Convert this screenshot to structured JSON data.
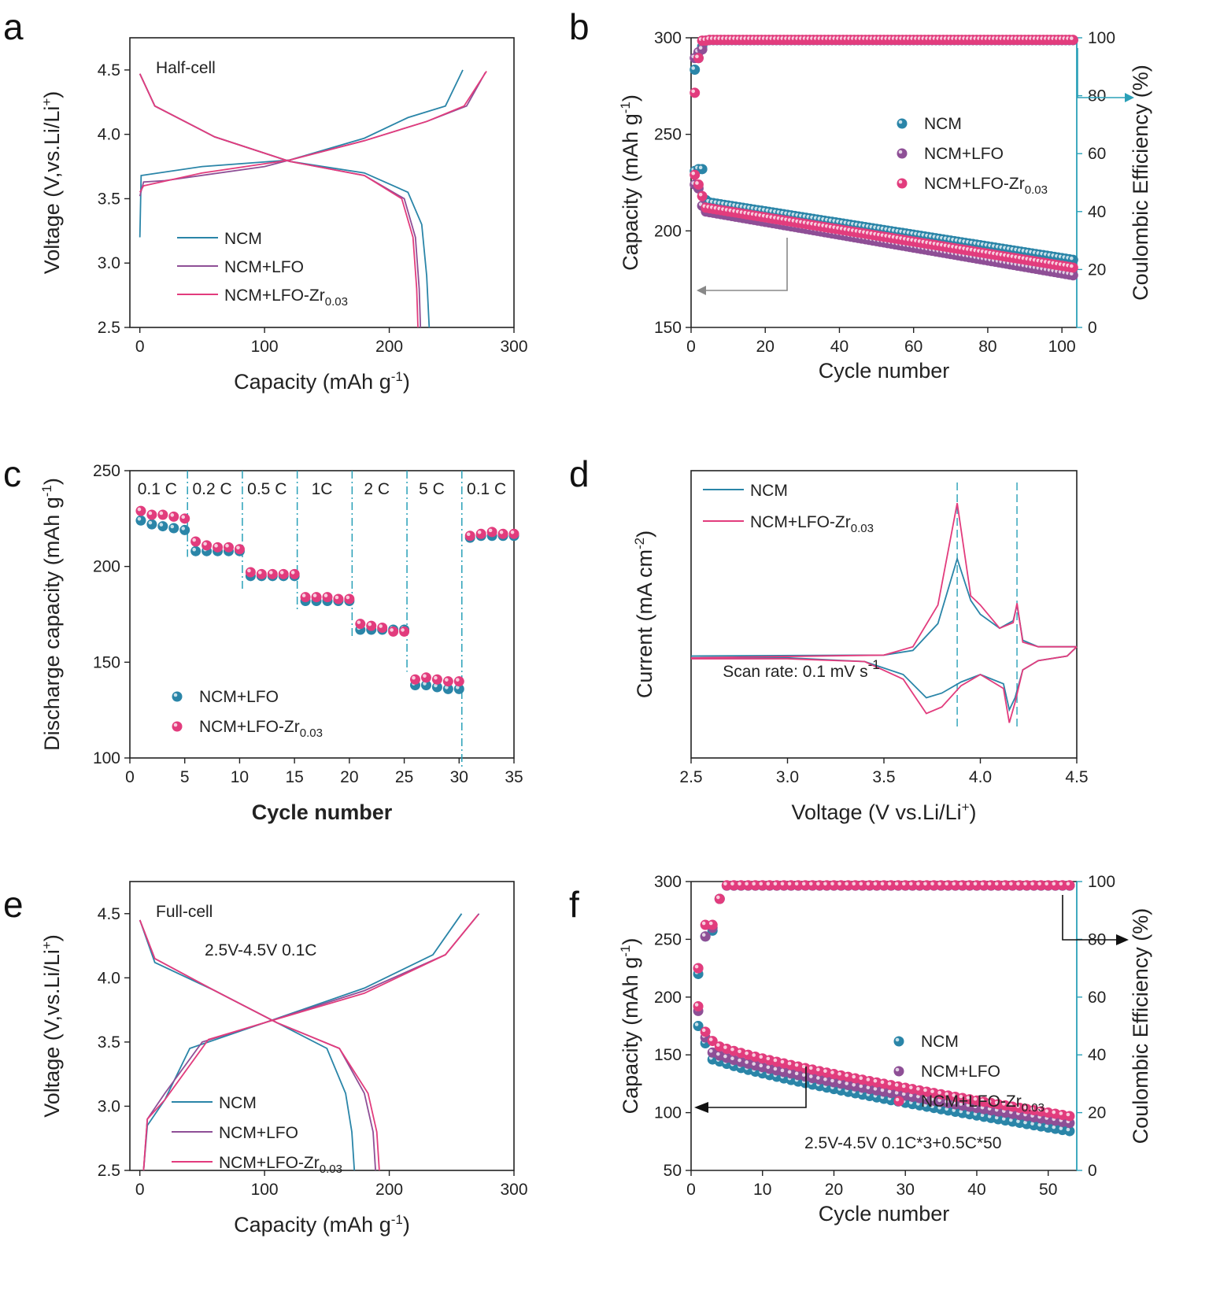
{
  "colors": {
    "ncm": "#2a85a8",
    "lfo": "#8e4f96",
    "zr": "#e23c7d",
    "cyan_axis": "#2aa0b8",
    "black": "#222222",
    "grey": "#888888"
  },
  "chart_data": [
    {
      "panel": "a",
      "type": "line",
      "annotation": "Half-cell",
      "xlabel": "Capacity (mAh g⁻¹)",
      "ylabel": "Voltage (V,vs.Li/Li⁺)",
      "xlim": [
        -8,
        300
      ],
      "ylim": [
        2.5,
        4.75
      ],
      "xticks": [
        "0",
        "100",
        "200",
        "300"
      ],
      "yticks": [
        "2.5",
        "3.0",
        "3.5",
        "4.0",
        "4.5"
      ],
      "legend_position": "bottom-left",
      "series": [
        {
          "name": "NCM",
          "color": "ncm",
          "charge": [
            [
              0,
              3.2
            ],
            [
              1,
              3.68
            ],
            [
              50,
              3.75
            ],
            [
              120,
              3.8
            ],
            [
              180,
              3.97
            ],
            [
              215,
              4.13
            ],
            [
              245,
              4.22
            ],
            [
              259,
              4.5
            ]
          ],
          "discharge": [
            [
              0,
              4.47
            ],
            [
              12,
              4.22
            ],
            [
              60,
              3.98
            ],
            [
              120,
              3.79
            ],
            [
              180,
              3.7
            ],
            [
              215,
              3.55
            ],
            [
              226,
              3.3
            ],
            [
              230,
              2.9
            ],
            [
              232,
              2.5
            ]
          ]
        },
        {
          "name": "NCM+LFO",
          "color": "lfo",
          "charge": [
            [
              0,
              3.52
            ],
            [
              3,
              3.63
            ],
            [
              20,
              3.64
            ],
            [
              100,
              3.75
            ],
            [
              180,
              3.95
            ],
            [
              230,
              4.1
            ],
            [
              262,
              4.22
            ],
            [
              277,
              4.48
            ]
          ],
          "discharge": [
            [
              0,
              4.47
            ],
            [
              12,
              4.22
            ],
            [
              60,
              3.98
            ],
            [
              120,
              3.79
            ],
            [
              180,
              3.68
            ],
            [
              212,
              3.5
            ],
            [
              221,
              3.2
            ],
            [
              224,
              2.8
            ],
            [
              225,
              2.5
            ]
          ]
        },
        {
          "name": "NCM+LFO-Zr0.03",
          "color": "zr",
          "charge": [
            [
              0,
              3.55
            ],
            [
              3,
              3.6
            ],
            [
              50,
              3.7
            ],
            [
              120,
              3.8
            ],
            [
              180,
              3.95
            ],
            [
              230,
              4.1
            ],
            [
              260,
              4.22
            ],
            [
              278,
              4.49
            ]
          ],
          "discharge": [
            [
              0,
              4.47
            ],
            [
              12,
              4.22
            ],
            [
              60,
              3.98
            ],
            [
              120,
              3.79
            ],
            [
              180,
              3.68
            ],
            [
              210,
              3.5
            ],
            [
              219,
              3.2
            ],
            [
              222,
              2.8
            ],
            [
              223,
              2.5
            ]
          ]
        }
      ]
    },
    {
      "panel": "b",
      "type": "scatter",
      "xlabel": "Cycle number",
      "ylabel": "Capacity (mAh g⁻¹)",
      "y2label": "Coulombic Efficiency (%)",
      "xlim": [
        0,
        104
      ],
      "ylim": [
        150,
        300
      ],
      "y2lim": [
        0,
        100
      ],
      "xticks": [
        "0",
        "20",
        "40",
        "60",
        "80",
        "100"
      ],
      "yticks": [
        "150",
        "200",
        "250",
        "300"
      ],
      "y2ticks": [
        "0",
        "20",
        "40",
        "60",
        "80",
        "100"
      ],
      "legend_position": "center-right",
      "capacity": [
        {
          "name": "NCM",
          "color": "ncm",
          "first": [
            231,
            232,
            232,
            216
          ],
          "start": 215,
          "end": 185,
          "n": 103
        },
        {
          "name": "NCM+LFO",
          "color": "lfo",
          "first": [
            224,
            222,
            213,
            210
          ],
          "start": 210,
          "end": 177,
          "n": 103
        },
        {
          "name": "NCM+LFO-Zr0.03",
          "color": "zr",
          "first": [
            229,
            224,
            218,
            212
          ],
          "start": 212,
          "end": 181,
          "n": 103
        }
      ],
      "efficiency": [
        {
          "name": "NCM",
          "color": "ncm",
          "first": [
            89,
            93,
            97,
            99
          ],
          "value": 99.2
        },
        {
          "name": "NCM+LFO",
          "color": "lfo",
          "first": [
            93,
            95,
            96,
            99
          ],
          "value": 99.2
        },
        {
          "name": "NCM+LFO-Zr0.03",
          "color": "zr",
          "first": [
            81,
            93,
            99,
            99
          ],
          "value": 99.3
        }
      ]
    },
    {
      "panel": "c",
      "type": "scatter",
      "xlabel": "Cycle number",
      "ylabel": "Discharge capacity (mAh g⁻¹)",
      "xlim": [
        0,
        35
      ],
      "ylim": [
        100,
        250
      ],
      "xticks": [
        "0",
        "5",
        "10",
        "15",
        "20",
        "25",
        "30",
        "35"
      ],
      "yticks": [
        "100",
        "150",
        "200",
        "250"
      ],
      "legend_position": "bottom-left",
      "rate_labels": [
        "0.1 C",
        "0.2 C",
        "0.5 C",
        "1C",
        "2 C",
        "5 C",
        "0.1 C"
      ],
      "series": [
        {
          "name": "NCM+LFO",
          "color": "ncm",
          "values": [
            224,
            222,
            221,
            220,
            219,
            208,
            208,
            208,
            208,
            208,
            195,
            195,
            195,
            195,
            195,
            182,
            182,
            182,
            182,
            182,
            167,
            167,
            167,
            167,
            167,
            138,
            138,
            137,
            136,
            136,
            215,
            216,
            216,
            216,
            216
          ]
        },
        {
          "name": "NCM+LFO-Zr0.03",
          "color": "zr",
          "values": [
            229,
            227,
            227,
            226,
            225,
            213,
            211,
            210,
            210,
            209,
            197,
            196,
            196,
            196,
            196,
            184,
            184,
            184,
            183,
            183,
            170,
            169,
            168,
            166,
            166,
            141,
            142,
            141,
            140,
            140,
            216,
            217,
            218,
            217,
            217
          ]
        }
      ]
    },
    {
      "panel": "d",
      "type": "line",
      "annotation": "Scan rate: 0.1 mV s⁻¹",
      "xlabel": "Voltage (V vs.Li/Li⁺)",
      "ylabel": "Current (mA cm⁻²)",
      "xlim": [
        2.5,
        4.5
      ],
      "ylim": [
        -1.1,
        2.0
      ],
      "xticks": [
        "2.5",
        "3.0",
        "3.5",
        "4.0",
        "4.5"
      ],
      "legend_position": "top-left",
      "peak_markers": [
        3.88,
        4.19
      ],
      "series": [
        {
          "name": "NCM",
          "color": "ncm",
          "anodic": [
            [
              2.5,
              0
            ],
            [
              3.5,
              0.01
            ],
            [
              3.65,
              0.06
            ],
            [
              3.78,
              0.35
            ],
            [
              3.88,
              1.05
            ],
            [
              3.95,
              0.6
            ],
            [
              4.0,
              0.45
            ],
            [
              4.1,
              0.3
            ],
            [
              4.17,
              0.38
            ],
            [
              4.19,
              0.55
            ],
            [
              4.22,
              0.17
            ],
            [
              4.3,
              0.1
            ],
            [
              4.5,
              0.1
            ]
          ],
          "cathodic": [
            [
              4.5,
              0.1
            ],
            [
              4.45,
              0.0
            ],
            [
              4.3,
              -0.05
            ],
            [
              4.22,
              -0.15
            ],
            [
              4.18,
              -0.45
            ],
            [
              4.15,
              -0.58
            ],
            [
              4.12,
              -0.3
            ],
            [
              4.0,
              -0.2
            ],
            [
              3.9,
              -0.28
            ],
            [
              3.8,
              -0.4
            ],
            [
              3.72,
              -0.45
            ],
            [
              3.6,
              -0.2
            ],
            [
              3.4,
              -0.06
            ],
            [
              3.0,
              -0.02
            ],
            [
              2.5,
              -0.02
            ]
          ]
        },
        {
          "name": "NCM+LFO-Zr0.03",
          "color": "zr",
          "anodic": [
            [
              2.5,
              -0.02
            ],
            [
              3.5,
              0.01
            ],
            [
              3.65,
              0.1
            ],
            [
              3.78,
              0.55
            ],
            [
              3.88,
              1.65
            ],
            [
              3.95,
              0.65
            ],
            [
              4.0,
              0.55
            ],
            [
              4.1,
              0.3
            ],
            [
              4.17,
              0.36
            ],
            [
              4.19,
              0.57
            ],
            [
              4.22,
              0.15
            ],
            [
              4.3,
              0.1
            ],
            [
              4.5,
              0.1
            ]
          ],
          "cathodic": [
            [
              4.5,
              0.1
            ],
            [
              4.45,
              0.0
            ],
            [
              4.3,
              -0.05
            ],
            [
              4.22,
              -0.15
            ],
            [
              4.18,
              -0.5
            ],
            [
              4.15,
              -0.72
            ],
            [
              4.12,
              -0.35
            ],
            [
              4.0,
              -0.2
            ],
            [
              3.9,
              -0.32
            ],
            [
              3.8,
              -0.55
            ],
            [
              3.72,
              -0.62
            ],
            [
              3.6,
              -0.25
            ],
            [
              3.4,
              -0.06
            ],
            [
              3.0,
              -0.03
            ],
            [
              2.5,
              -0.03
            ]
          ]
        }
      ]
    },
    {
      "panel": "e",
      "type": "line",
      "annotation": "Full-cell",
      "annotation2": "2.5V-4.5V 0.1C",
      "xlabel": "Capacity (mAh g⁻¹)",
      "ylabel": "Voltage (V,vs.Li/Li⁺)",
      "xlim": [
        -8,
        300
      ],
      "ylim": [
        2.5,
        4.75
      ],
      "xticks": [
        "0",
        "100",
        "200",
        "300"
      ],
      "yticks": [
        "2.5",
        "3.0",
        "3.5",
        "4.0",
        "4.5"
      ],
      "legend_position": "bottom-center",
      "series": [
        {
          "name": "NCM",
          "color": "ncm",
          "charge": [
            [
              3,
              2.5
            ],
            [
              6,
              2.85
            ],
            [
              20,
              3.05
            ],
            [
              40,
              3.45
            ],
            [
              100,
              3.65
            ],
            [
              180,
              3.92
            ],
            [
              235,
              4.18
            ],
            [
              258,
              4.5
            ]
          ],
          "discharge": [
            [
              0,
              4.45
            ],
            [
              12,
              4.12
            ],
            [
              60,
              3.9
            ],
            [
              110,
              3.65
            ],
            [
              150,
              3.45
            ],
            [
              165,
              3.1
            ],
            [
              170,
              2.8
            ],
            [
              172,
              2.5
            ]
          ]
        },
        {
          "name": "NCM+LFO",
          "color": "lfo",
          "charge": [
            [
              3,
              2.5
            ],
            [
              6,
              2.9
            ],
            [
              20,
              3.1
            ],
            [
              50,
              3.5
            ],
            [
              100,
              3.65
            ],
            [
              180,
              3.9
            ],
            [
              245,
              4.18
            ],
            [
              272,
              4.5
            ]
          ],
          "discharge": [
            [
              0,
              4.45
            ],
            [
              12,
              4.15
            ],
            [
              60,
              3.9
            ],
            [
              110,
              3.65
            ],
            [
              160,
              3.45
            ],
            [
              180,
              3.1
            ],
            [
              187,
              2.8
            ],
            [
              189,
              2.5
            ]
          ]
        },
        {
          "name": "NCM+LFO-Zr0.03",
          "color": "zr",
          "charge": [
            [
              3,
              2.5
            ],
            [
              6,
              2.9
            ],
            [
              20,
              3.05
            ],
            [
              55,
              3.52
            ],
            [
              100,
              3.65
            ],
            [
              180,
              3.88
            ],
            [
              245,
              4.18
            ],
            [
              271,
              4.49
            ]
          ],
          "discharge": [
            [
              0,
              4.45
            ],
            [
              12,
              4.15
            ],
            [
              60,
              3.9
            ],
            [
              110,
              3.65
            ],
            [
              160,
              3.45
            ],
            [
              183,
              3.1
            ],
            [
              190,
              2.8
            ],
            [
              192,
              2.5
            ]
          ]
        }
      ]
    },
    {
      "panel": "f",
      "type": "scatter",
      "annotation": "2.5V-4.5V 0.1C*3+0.5C*50",
      "xlabel": "Cycle number",
      "ylabel": "Capacity (mAh g⁻¹)",
      "y2label": "Coulombic Efficiency (%)",
      "xlim": [
        0,
        54
      ],
      "ylim": [
        50,
        300
      ],
      "y2lim": [
        0,
        100
      ],
      "xticks": [
        "0",
        "10",
        "20",
        "30",
        "40",
        "50"
      ],
      "yticks": [
        "50",
        "100",
        "150",
        "200",
        "250",
        "300"
      ],
      "y2ticks": [
        "0",
        "20",
        "40",
        "60",
        "80",
        "100"
      ],
      "legend_position": "center-right",
      "capacity": [
        {
          "name": "NCM",
          "color": "ncm",
          "first": [
            175,
            160,
            146
          ],
          "start": 147,
          "end": 84,
          "n": 53
        },
        {
          "name": "NCM+LFO",
          "color": "lfo",
          "first": [
            188,
            165,
            152
          ],
          "start": 152,
          "end": 91,
          "n": 53
        },
        {
          "name": "NCM+LFO-Zr0.03",
          "color": "zr",
          "first": [
            192,
            170,
            162
          ],
          "start": 160,
          "end": 97,
          "n": 53
        }
      ],
      "efficiency": [
        {
          "name": "NCM",
          "color": "ncm",
          "first": [
            68,
            81,
            83,
            94
          ],
          "value": 98.6
        },
        {
          "name": "NCM+LFO",
          "color": "lfo",
          "first": [
            70,
            81,
            84,
            94
          ],
          "value": 98.6
        },
        {
          "name": "NCM+LFO-Zr0.03",
          "color": "zr",
          "first": [
            70,
            85,
            85,
            94
          ],
          "value": 98.7
        }
      ]
    }
  ]
}
